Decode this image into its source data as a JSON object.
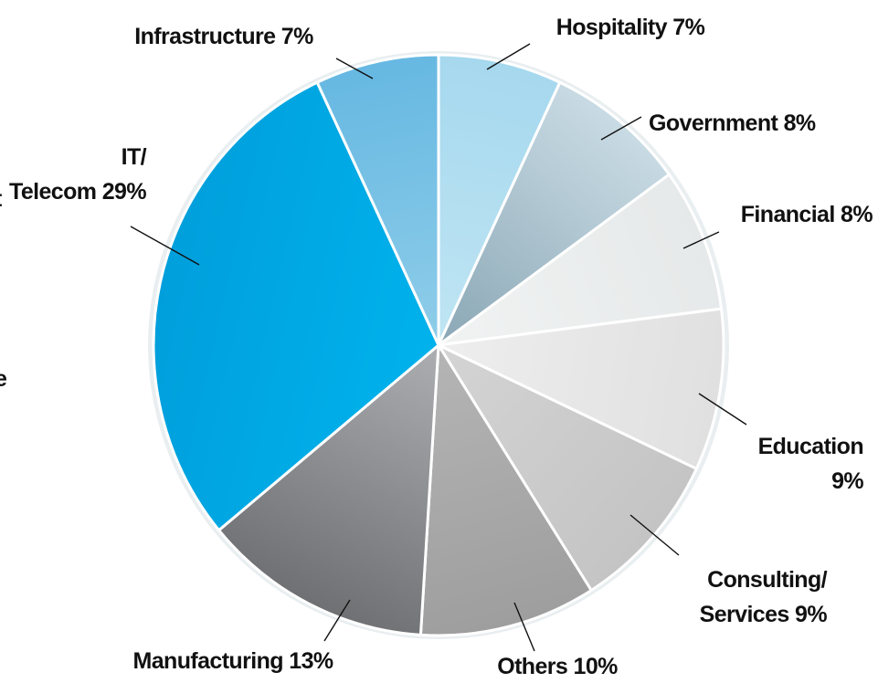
{
  "chart_data": {
    "type": "pie",
    "unit": "%",
    "slices": [
      {
        "label": "Hospitality",
        "value": 7,
        "text": [
          "Hospitality 7%"
        ],
        "color": "#bfe5f3",
        "color2": "#a6d8ee"
      },
      {
        "label": "Government",
        "value": 8,
        "text": [
          "Government 8%"
        ],
        "color": "#8aa7b5",
        "color2": "#c9dbe4"
      },
      {
        "label": "Financial",
        "value": 8,
        "text": [
          "Financial 8%"
        ],
        "color": "#f1f3f3",
        "color2": "#e6e9e9"
      },
      {
        "label": "Education",
        "value": 9,
        "text": [
          "Education",
          "9%"
        ],
        "color": "#eeeeee",
        "color2": "#e0e0e0"
      },
      {
        "label": "Consulting/ Services",
        "value": 9,
        "text": [
          "Consulting/",
          "Services 9%"
        ],
        "color": "#d4d4d4",
        "color2": "#c4c4c4"
      },
      {
        "label": "Others",
        "value": 10,
        "text": [
          "Others 10%"
        ],
        "color": "#b5b5b5",
        "color2": "#9e9e9e"
      },
      {
        "label": "Manufacturing",
        "value": 13,
        "text": [
          "Manufacturing 13%"
        ],
        "color": "#adaeb1",
        "color2": "#6f7073"
      },
      {
        "label": "IT/ Telecom",
        "value": 29,
        "text": [
          "IT/",
          "Telecom 29%"
        ],
        "color": "#00b2ec",
        "color2": "#009fdc"
      },
      {
        "label": "Infrastructure",
        "value": 7,
        "text": [
          "Infrastructure 7%"
        ],
        "color": "#8fcde9",
        "color2": "#66b8e2"
      }
    ],
    "edge_text": [
      "t",
      "e"
    ]
  }
}
